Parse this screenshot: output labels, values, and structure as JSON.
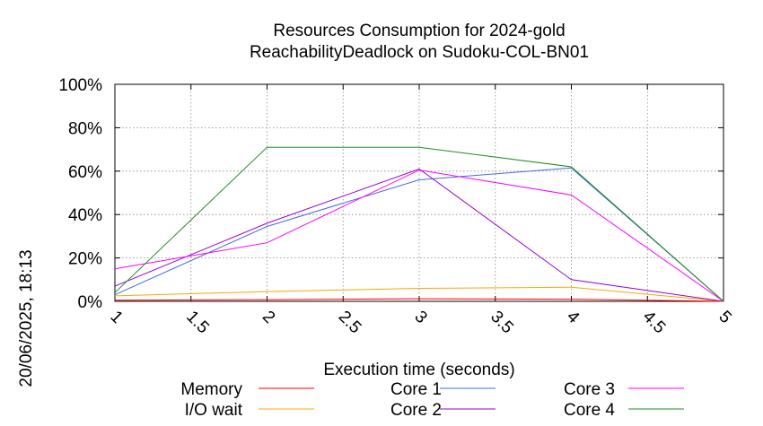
{
  "chart_data": {
    "type": "line",
    "title": "Resources Consumption for 2024-gold",
    "subtitle": "ReachabilityDeadlock on Sudoku-COL-BN01",
    "xlabel": "Execution time (seconds)",
    "ylabel": "",
    "timestamp": "20/06/2025, 18:13",
    "xlim": [
      1,
      5
    ],
    "ylim": [
      0,
      100
    ],
    "x_ticks": [
      "1",
      "1.5",
      "2",
      "2.5",
      "3",
      "3.5",
      "4",
      "4.5",
      "5"
    ],
    "y_ticks": [
      "0%",
      "20%",
      "40%",
      "60%",
      "80%",
      "100%"
    ],
    "grid": true,
    "legend_position": "bottom",
    "series": [
      {
        "name": "Memory",
        "color": "#ff0000",
        "x": [
          1,
          2,
          3,
          4,
          5
        ],
        "y": [
          0.5,
          0.8,
          1.2,
          1.0,
          0
        ]
      },
      {
        "name": "I/O wait",
        "color": "#ffa500",
        "x": [
          1,
          2,
          3,
          4,
          5
        ],
        "y": [
          2.5,
          4.5,
          6.0,
          6.5,
          0
        ]
      },
      {
        "name": "Core 1",
        "color": "#4169e1",
        "x": [
          1,
          2,
          3,
          4,
          5
        ],
        "y": [
          3,
          34.5,
          56,
          61.5,
          0
        ]
      },
      {
        "name": "Core 2",
        "color": "#9400d3",
        "x": [
          1,
          2,
          3,
          4,
          5
        ],
        "y": [
          7,
          36,
          61,
          10,
          0
        ]
      },
      {
        "name": "Core 3",
        "color": "#ff00ff",
        "x": [
          1,
          2,
          3,
          4,
          5
        ],
        "y": [
          15,
          27,
          60.5,
          49,
          0
        ]
      },
      {
        "name": "Core 4",
        "color": "#228b22",
        "x": [
          1,
          2,
          3,
          4,
          5
        ],
        "y": [
          4,
          71,
          71,
          62,
          0
        ]
      }
    ]
  }
}
